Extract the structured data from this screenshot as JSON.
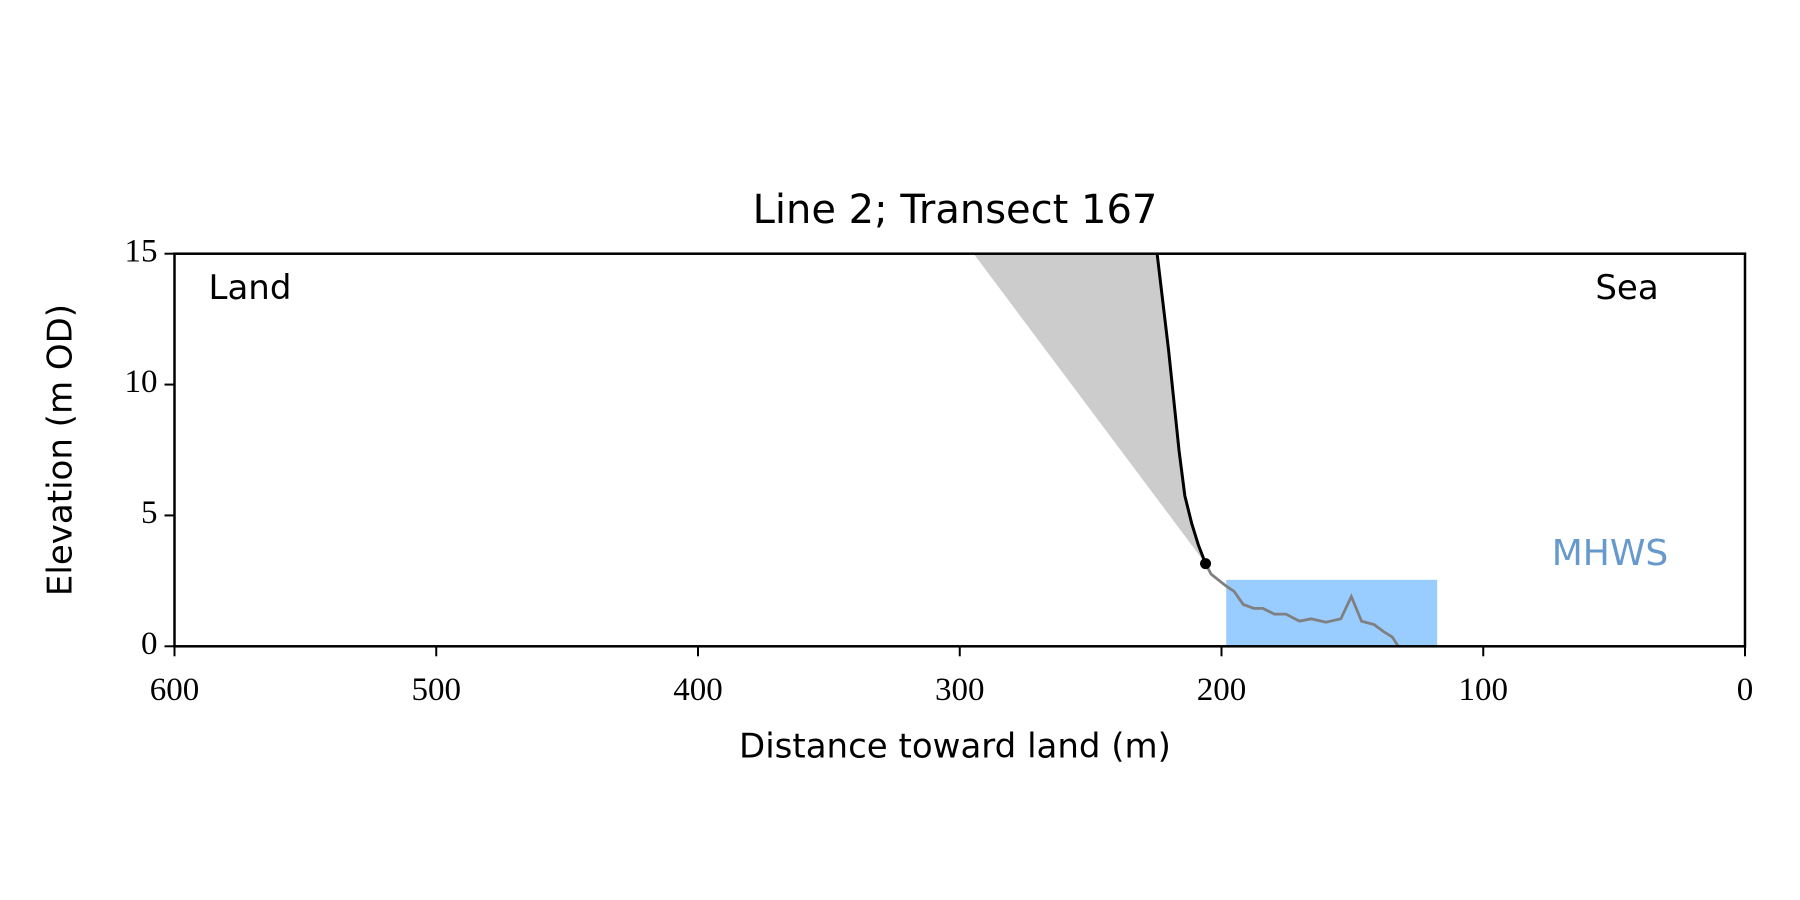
{
  "chart_data": {
    "type": "line",
    "title": "Line 2; Transect 167",
    "xlabel": "Distance toward land (m)",
    "ylabel": "Elevation (m OD)",
    "xlim": [
      600,
      0
    ],
    "ylim": [
      0,
      15
    ],
    "xticks": [
      600,
      500,
      400,
      300,
      200,
      100,
      0
    ],
    "yticks": [
      0,
      5,
      10,
      15
    ],
    "annotations": [
      "Land",
      "Sea"
    ],
    "series": [
      {
        "color": "#000000",
        "x": [
          206.1,
          208.8,
          211.4,
          214.0,
          216.2,
          220.2,
          224.6
        ],
        "values": [
          3.16,
          3.86,
          4.7,
          5.75,
          7.46,
          11.3,
          15
        ]
      },
      {
        "color": "#808080",
        "x": [
          206.1,
          204,
          198.2,
          195.2,
          191.7,
          187.7,
          184.2,
          179.8,
          175.4,
          170.2,
          165.8,
          160.1,
          154.4,
          150.4,
          146.5,
          141.7,
          138.2,
          134.7,
          132.5
        ],
        "values": [
          3.16,
          2.76,
          2.3,
          2.1,
          1.6,
          1.45,
          1.45,
          1.23,
          1.23,
          0.96,
          1.05,
          0.92,
          1.05,
          1.9,
          0.96,
          0.83,
          0.57,
          0.35,
          0
        ]
      }
    ],
    "shade": {
      "color": "#cccccc",
      "x": [
        294.7,
        224.6,
        220.2,
        216.2,
        214.0,
        211.4,
        208.8,
        206.1
      ],
      "values": [
        15,
        15,
        11.3,
        7.46,
        5.75,
        4.7,
        3.86,
        3.16
      ]
    },
    "marker": {
      "color": "#000000",
      "x": 206.1,
      "value": 3.16
    },
    "mhws": {
      "label": "MHWS",
      "color": "#99ccff",
      "label_color": "#6699cc",
      "xlim": [
        198.2,
        117.6
      ],
      "value": 2.54
    }
  }
}
